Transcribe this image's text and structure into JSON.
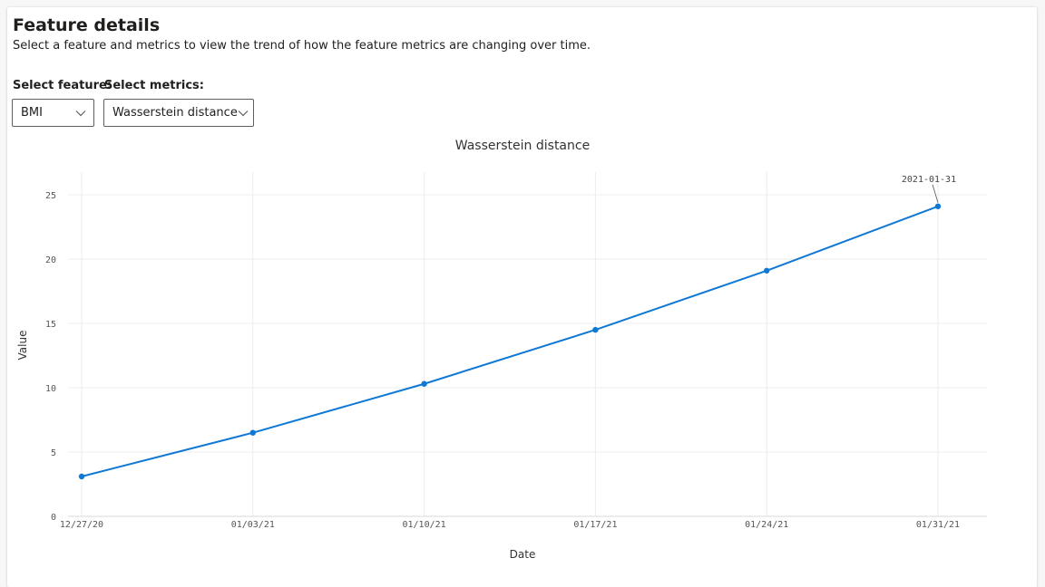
{
  "header": {
    "title": "Feature details",
    "subtitle": "Select a feature and metrics to view the trend of how the feature metrics are changing over time."
  },
  "controls": {
    "feature_label": "Select feature:",
    "feature_value": "BMI",
    "metrics_label": "Select metrics:",
    "metrics_value": "Wasserstein distance"
  },
  "colors": {
    "series": "#0f78d4",
    "grid": "#ececec",
    "axis": "#d9d9d9"
  },
  "chart_data": {
    "type": "line",
    "title": "Wasserstein distance",
    "xlabel": "Date",
    "ylabel": "Value",
    "x": [
      "12/27/20",
      "01/03/21",
      "01/10/21",
      "01/17/21",
      "01/24/21",
      "01/31/21"
    ],
    "series": [
      {
        "values": [
          3.1,
          6.5,
          10.3,
          14.5,
          19.1,
          24.1
        ]
      }
    ],
    "ylim": [
      0,
      25
    ],
    "yticks": [
      "0",
      "5",
      "10",
      "15",
      "20",
      "25"
    ],
    "grid": true,
    "annotations": [
      {
        "text": "2021-01-31",
        "point_index": 5
      }
    ]
  }
}
